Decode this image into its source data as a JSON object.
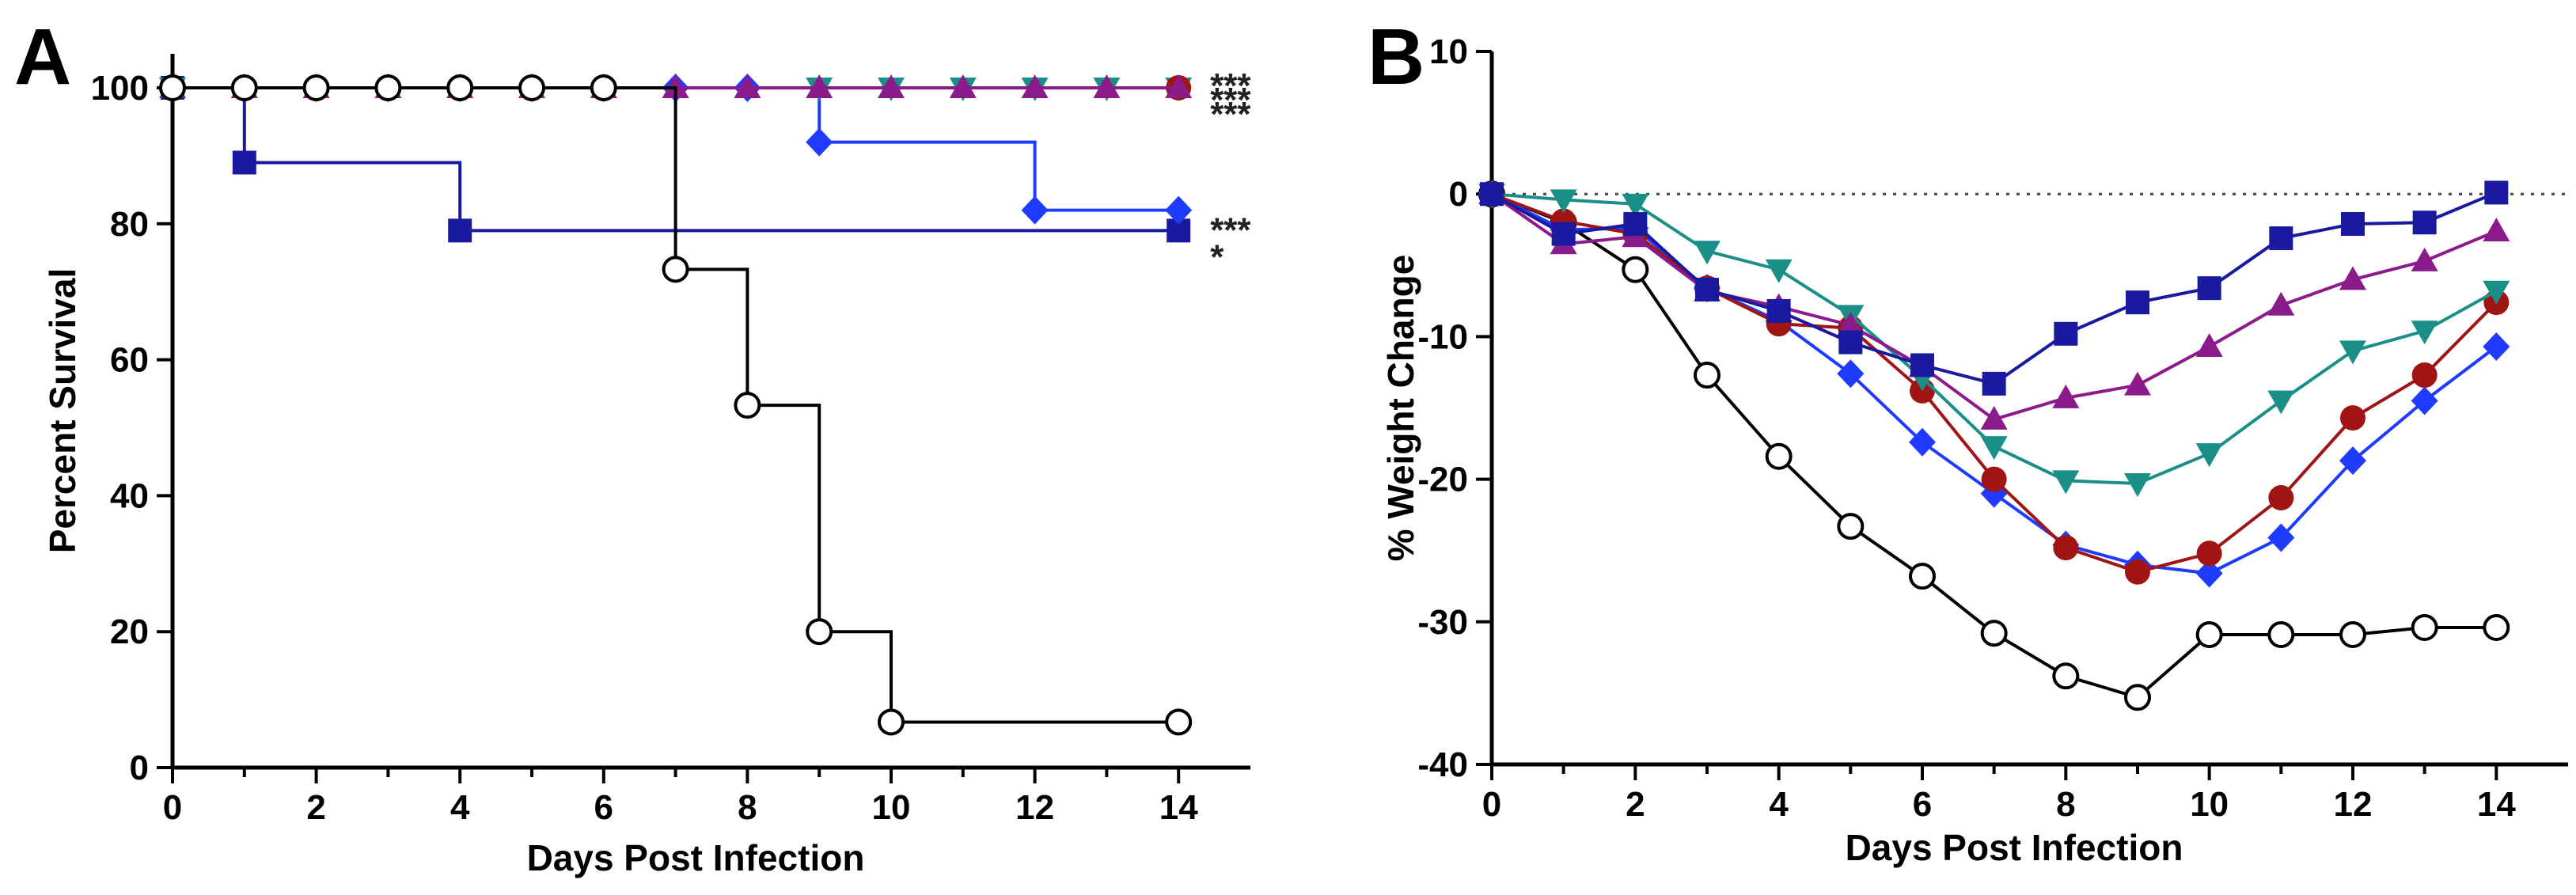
{
  "chart_data": [
    {
      "panel_label": "A",
      "type": "line",
      "style": "survival-step",
      "xlabel": "Days Post Infection",
      "ylabel": "Percent Survival",
      "xlim": [
        0,
        15
      ],
      "ylim": [
        0,
        105
      ],
      "xticks": [
        0,
        2,
        4,
        6,
        8,
        10,
        12,
        14
      ],
      "yticks": [
        0,
        20,
        40,
        60,
        80,
        100
      ],
      "series": [
        {
          "name": "navy-square",
          "color": "#1a1aa0",
          "marker": "square",
          "x": [
            0,
            1,
            4,
            14
          ],
          "y": [
            100,
            89,
            79,
            79
          ],
          "significance": "*"
        },
        {
          "name": "blue-diamond",
          "color": "#1f3bff",
          "marker": "diamond",
          "x": [
            0,
            1,
            2,
            3,
            4,
            5,
            6,
            7,
            8,
            9,
            12,
            14
          ],
          "y": [
            100,
            100,
            100,
            100,
            100,
            100,
            100,
            100,
            100,
            92,
            82,
            82
          ],
          "significance": "***"
        },
        {
          "name": "teal-triangle-down",
          "color": "#1a8f88",
          "marker": "triangle-down",
          "x": [
            0,
            9,
            10,
            11,
            12,
            13,
            14
          ],
          "y": [
            100,
            100,
            100,
            100,
            100,
            100,
            100
          ],
          "significance": "***"
        },
        {
          "name": "red-circle",
          "color": "#a01414",
          "marker": "circle",
          "x": [
            0,
            14
          ],
          "y": [
            100,
            100
          ],
          "significance": "***"
        },
        {
          "name": "purple-triangle-up",
          "color": "#8b1a8b",
          "marker": "triangle-up",
          "x": [
            0,
            1,
            2,
            3,
            4,
            5,
            6,
            7,
            8,
            9,
            10,
            11,
            12,
            13,
            14
          ],
          "y": [
            100,
            100,
            100,
            100,
            100,
            100,
            100,
            100,
            100,
            100,
            100,
            100,
            100,
            100,
            100
          ],
          "significance": "***"
        },
        {
          "name": "black-open-circle",
          "color": "#000000",
          "marker": "open-circle",
          "x": [
            0,
            1,
            2,
            3,
            4,
            5,
            6,
            7,
            8,
            9,
            10,
            14
          ],
          "y": [
            100,
            100,
            100,
            100,
            100,
            100,
            100,
            73.3,
            53.3,
            20,
            6.7,
            6.7
          ],
          "significance": ""
        }
      ]
    },
    {
      "panel_label": "B",
      "type": "line",
      "xlabel": "Days Post Infection",
      "ylabel": "% Weight Change",
      "xlim": [
        0,
        15
      ],
      "ylim": [
        -40,
        10
      ],
      "xticks": [
        0,
        2,
        4,
        6,
        8,
        10,
        12,
        14
      ],
      "yticks": [
        10,
        0,
        -10,
        -20,
        -30,
        -40
      ],
      "baseline": 0,
      "series": [
        {
          "name": "black-open-circle",
          "color": "#000000",
          "marker": "open-circle",
          "x": [
            0,
            1,
            2,
            3,
            4,
            5,
            6,
            7,
            8,
            9,
            10,
            11,
            12,
            13,
            14
          ],
          "y": [
            0,
            -2,
            -5.3,
            -12.7,
            -18.4,
            -23.3,
            -26.8,
            -30.8,
            -33.8,
            -35.3,
            -30.9,
            -30.9,
            -30.9,
            -30.4,
            -30.4
          ]
        },
        {
          "name": "blue-diamond",
          "color": "#1f3bff",
          "marker": "diamond",
          "x": [
            0,
            1,
            2,
            3,
            4,
            5,
            6,
            7,
            8,
            9,
            10,
            11,
            12,
            13,
            14
          ],
          "y": [
            0,
            -2.5,
            -2.4,
            -6.6,
            -8.9,
            -12.6,
            -17.4,
            -21,
            -24.6,
            -26,
            -26.6,
            -24.1,
            -18.7,
            -14.5,
            -10.7
          ]
        },
        {
          "name": "red-circle",
          "color": "#a01414",
          "marker": "circle",
          "x": [
            0,
            1,
            2,
            3,
            4,
            5,
            6,
            7,
            8,
            9,
            10,
            11,
            12,
            13,
            14
          ],
          "y": [
            0,
            -1.9,
            -2.8,
            -6.6,
            -9.1,
            -9.4,
            -13.8,
            -20,
            -24.8,
            -26.5,
            -25.2,
            -21.3,
            -15.7,
            -12.7,
            -7.6
          ]
        },
        {
          "name": "teal-triangle-down",
          "color": "#1a8f88",
          "marker": "triangle-down",
          "x": [
            0,
            1,
            2,
            3,
            4,
            5,
            6,
            7,
            8,
            9,
            10,
            11,
            12,
            13,
            14
          ],
          "y": [
            0,
            -0.4,
            -0.7,
            -4,
            -5.3,
            -8.5,
            -12.9,
            -17.7,
            -20.1,
            -20.3,
            -18.2,
            -14.5,
            -11,
            -9.6,
            -6.8
          ]
        },
        {
          "name": "purple-triangle-up",
          "color": "#8b1a8b",
          "marker": "triangle-up",
          "x": [
            0,
            1,
            2,
            3,
            4,
            5,
            6,
            7,
            8,
            9,
            10,
            11,
            12,
            13,
            14
          ],
          "y": [
            0,
            -3.5,
            -3,
            -6.8,
            -7.9,
            -9.2,
            -12.1,
            -15.8,
            -14.3,
            -13.4,
            -10.7,
            -7.8,
            -6,
            -4.7,
            -2.6
          ]
        },
        {
          "name": "navy-square",
          "color": "#1a1aa0",
          "marker": "square",
          "x": [
            0,
            1,
            2,
            3,
            4,
            5,
            6,
            7,
            8,
            9,
            10,
            11,
            12,
            13,
            14
          ],
          "y": [
            0,
            -2.8,
            -2.1,
            -6.7,
            -8.2,
            -10.4,
            -12,
            -13.3,
            -9.8,
            -7.6,
            -6.6,
            -3.1,
            -2.1,
            -2,
            0.1
          ]
        }
      ]
    }
  ]
}
